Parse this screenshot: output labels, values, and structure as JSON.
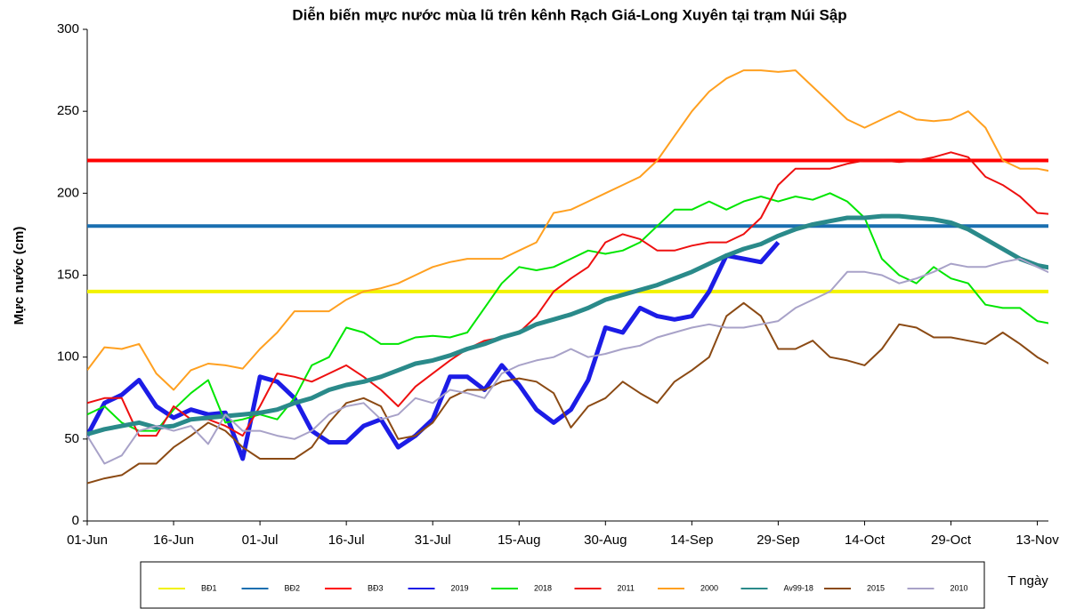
{
  "chart_data": {
    "type": "line",
    "title": "Diễn biến mực nước mùa lũ trên kênh Rạch Giá-Long Xuyên tại trạm Núi Sập",
    "y_label": "Mực nước (cm)",
    "x_label": "T ngày",
    "categories": [
      "01-Jun",
      null,
      null,
      null,
      null,
      "16-Jun",
      null,
      null,
      null,
      null,
      "01-Jul",
      null,
      null,
      null,
      null,
      "16-Jul",
      null,
      null,
      null,
      null,
      "31-Jul",
      null,
      null,
      null,
      null,
      "15-Aug",
      null,
      null,
      null,
      null,
      "30-Aug",
      null,
      null,
      null,
      null,
      "14-Sep",
      null,
      null,
      null,
      null,
      "29-Sep",
      null,
      null,
      null,
      null,
      "14-Oct",
      null,
      null,
      null,
      null,
      "29-Oct",
      null,
      null,
      null,
      null,
      "13-Nov",
      null
    ],
    "ylim": [
      0,
      300
    ],
    "yticks": [
      0,
      50,
      100,
      150,
      200,
      250,
      300
    ],
    "grid": false,
    "legend": "bottom",
    "series": [
      {
        "name": "BĐ1",
        "color": "#f2f200",
        "values": [
          140,
          140,
          140,
          140,
          140,
          140,
          140,
          140,
          140,
          140,
          140,
          140,
          140,
          140,
          140,
          140,
          140,
          140,
          140,
          140,
          140,
          140,
          140,
          140,
          140,
          140,
          140,
          140,
          140,
          140,
          140,
          140,
          140,
          140,
          140,
          140,
          140,
          140,
          140,
          140,
          140,
          140,
          140,
          140,
          140,
          140,
          140,
          140,
          140,
          140,
          140,
          140,
          140,
          140,
          140,
          140,
          140
        ]
      },
      {
        "name": "BĐ2",
        "color": "#1a6fb0",
        "values": [
          180,
          180,
          180,
          180,
          180,
          180,
          180,
          180,
          180,
          180,
          180,
          180,
          180,
          180,
          180,
          180,
          180,
          180,
          180,
          180,
          180,
          180,
          180,
          180,
          180,
          180,
          180,
          180,
          180,
          180,
          180,
          180,
          180,
          180,
          180,
          180,
          180,
          180,
          180,
          180,
          180,
          180,
          180,
          180,
          180,
          180,
          180,
          180,
          180,
          180,
          180,
          180,
          180,
          180,
          180,
          180,
          180
        ]
      },
      {
        "name": "BĐ3",
        "color": "#ff0000",
        "values": [
          220,
          220,
          220,
          220,
          220,
          220,
          220,
          220,
          220,
          220,
          220,
          220,
          220,
          220,
          220,
          220,
          220,
          220,
          220,
          220,
          220,
          220,
          220,
          220,
          220,
          220,
          220,
          220,
          220,
          220,
          220,
          220,
          220,
          220,
          220,
          220,
          220,
          220,
          220,
          220,
          220,
          220,
          220,
          220,
          220,
          220,
          220,
          220,
          220,
          220,
          220,
          220,
          220,
          220,
          220,
          220,
          220
        ]
      },
      {
        "name": "2019",
        "color": "#1c1ce6",
        "values": [
          52,
          72,
          77,
          86,
          70,
          63,
          68,
          65,
          66,
          38,
          88,
          85,
          75,
          55,
          48,
          48,
          58,
          62,
          45,
          52,
          62,
          88,
          88,
          80,
          95,
          83,
          68,
          60,
          68,
          86,
          118,
          115,
          130,
          125,
          123,
          125,
          140,
          162,
          160,
          158,
          170,
          null,
          null,
          null,
          null,
          null,
          null,
          null,
          null,
          null,
          null,
          null,
          null,
          null,
          null,
          null,
          null
        ]
      },
      {
        "name": "2018",
        "color": "#00e600",
        "values": [
          65,
          70,
          60,
          55,
          55,
          68,
          78,
          86,
          60,
          62,
          65,
          62,
          75,
          95,
          100,
          118,
          115,
          108,
          108,
          112,
          113,
          112,
          115,
          130,
          145,
          155,
          153,
          155,
          160,
          165,
          163,
          165,
          170,
          180,
          190,
          190,
          195,
          190,
          195,
          198,
          195,
          198,
          196,
          200,
          195,
          185,
          160,
          150,
          145,
          155,
          148,
          145,
          132,
          130,
          130,
          122,
          120
        ]
      },
      {
        "name": "2011",
        "color": "#ee1010",
        "values": [
          72,
          75,
          75,
          52,
          52,
          70,
          62,
          62,
          58,
          52,
          70,
          90,
          88,
          85,
          90,
          95,
          88,
          80,
          70,
          82,
          90,
          98,
          105,
          110,
          112,
          115,
          125,
          140,
          148,
          155,
          170,
          175,
          172,
          165,
          165,
          168,
          170,
          170,
          175,
          185,
          205,
          215,
          215,
          215,
          218,
          220,
          220,
          219,
          220,
          222,
          225,
          222,
          210,
          205,
          198,
          188,
          187
        ]
      },
      {
        "name": "2000",
        "color": "#ffa020",
        "values": [
          92,
          106,
          105,
          108,
          90,
          80,
          92,
          96,
          95,
          93,
          105,
          115,
          128,
          128,
          128,
          135,
          140,
          142,
          145,
          150,
          155,
          158,
          160,
          160,
          160,
          165,
          170,
          188,
          190,
          195,
          200,
          205,
          210,
          220,
          235,
          250,
          262,
          270,
          275,
          275,
          274,
          275,
          265,
          255,
          245,
          240,
          245,
          250,
          245,
          244,
          245,
          250,
          240,
          220,
          215,
          215,
          213
        ]
      },
      {
        "name": "Av99-18",
        "color": "#2a8a8a",
        "values": [
          53,
          56,
          58,
          60,
          57,
          58,
          62,
          63,
          64,
          65,
          66,
          68,
          72,
          75,
          80,
          83,
          85,
          88,
          92,
          96,
          98,
          101,
          105,
          108,
          112,
          115,
          120,
          123,
          126,
          130,
          135,
          138,
          141,
          144,
          148,
          152,
          157,
          162,
          166,
          169,
          174,
          178,
          181,
          183,
          185,
          185,
          186,
          186,
          185,
          184,
          182,
          178,
          172,
          166,
          160,
          156,
          154
        ]
      },
      {
        "name": "2015",
        "color": "#8b4a14",
        "values": [
          23,
          26,
          28,
          35,
          35,
          45,
          52,
          60,
          55,
          45,
          38,
          38,
          38,
          45,
          60,
          72,
          75,
          70,
          50,
          52,
          60,
          75,
          80,
          80,
          85,
          87,
          85,
          78,
          57,
          70,
          75,
          85,
          78,
          72,
          85,
          92,
          100,
          125,
          133,
          125,
          105,
          105,
          110,
          100,
          98,
          95,
          105,
          120,
          118,
          112,
          112,
          110,
          108,
          115,
          108,
          100,
          94
        ]
      },
      {
        "name": "2010",
        "color": "#a8a2c8",
        "values": [
          52,
          35,
          40,
          55,
          58,
          55,
          58,
          47,
          65,
          55,
          55,
          52,
          50,
          55,
          65,
          70,
          72,
          62,
          65,
          75,
          72,
          80,
          78,
          75,
          90,
          95,
          98,
          100,
          105,
          100,
          102,
          105,
          107,
          112,
          115,
          118,
          120,
          118,
          118,
          120,
          122,
          130,
          135,
          140,
          152,
          152,
          150,
          145,
          148,
          152,
          157,
          155,
          155,
          158,
          160,
          155,
          150
        ]
      }
    ]
  }
}
